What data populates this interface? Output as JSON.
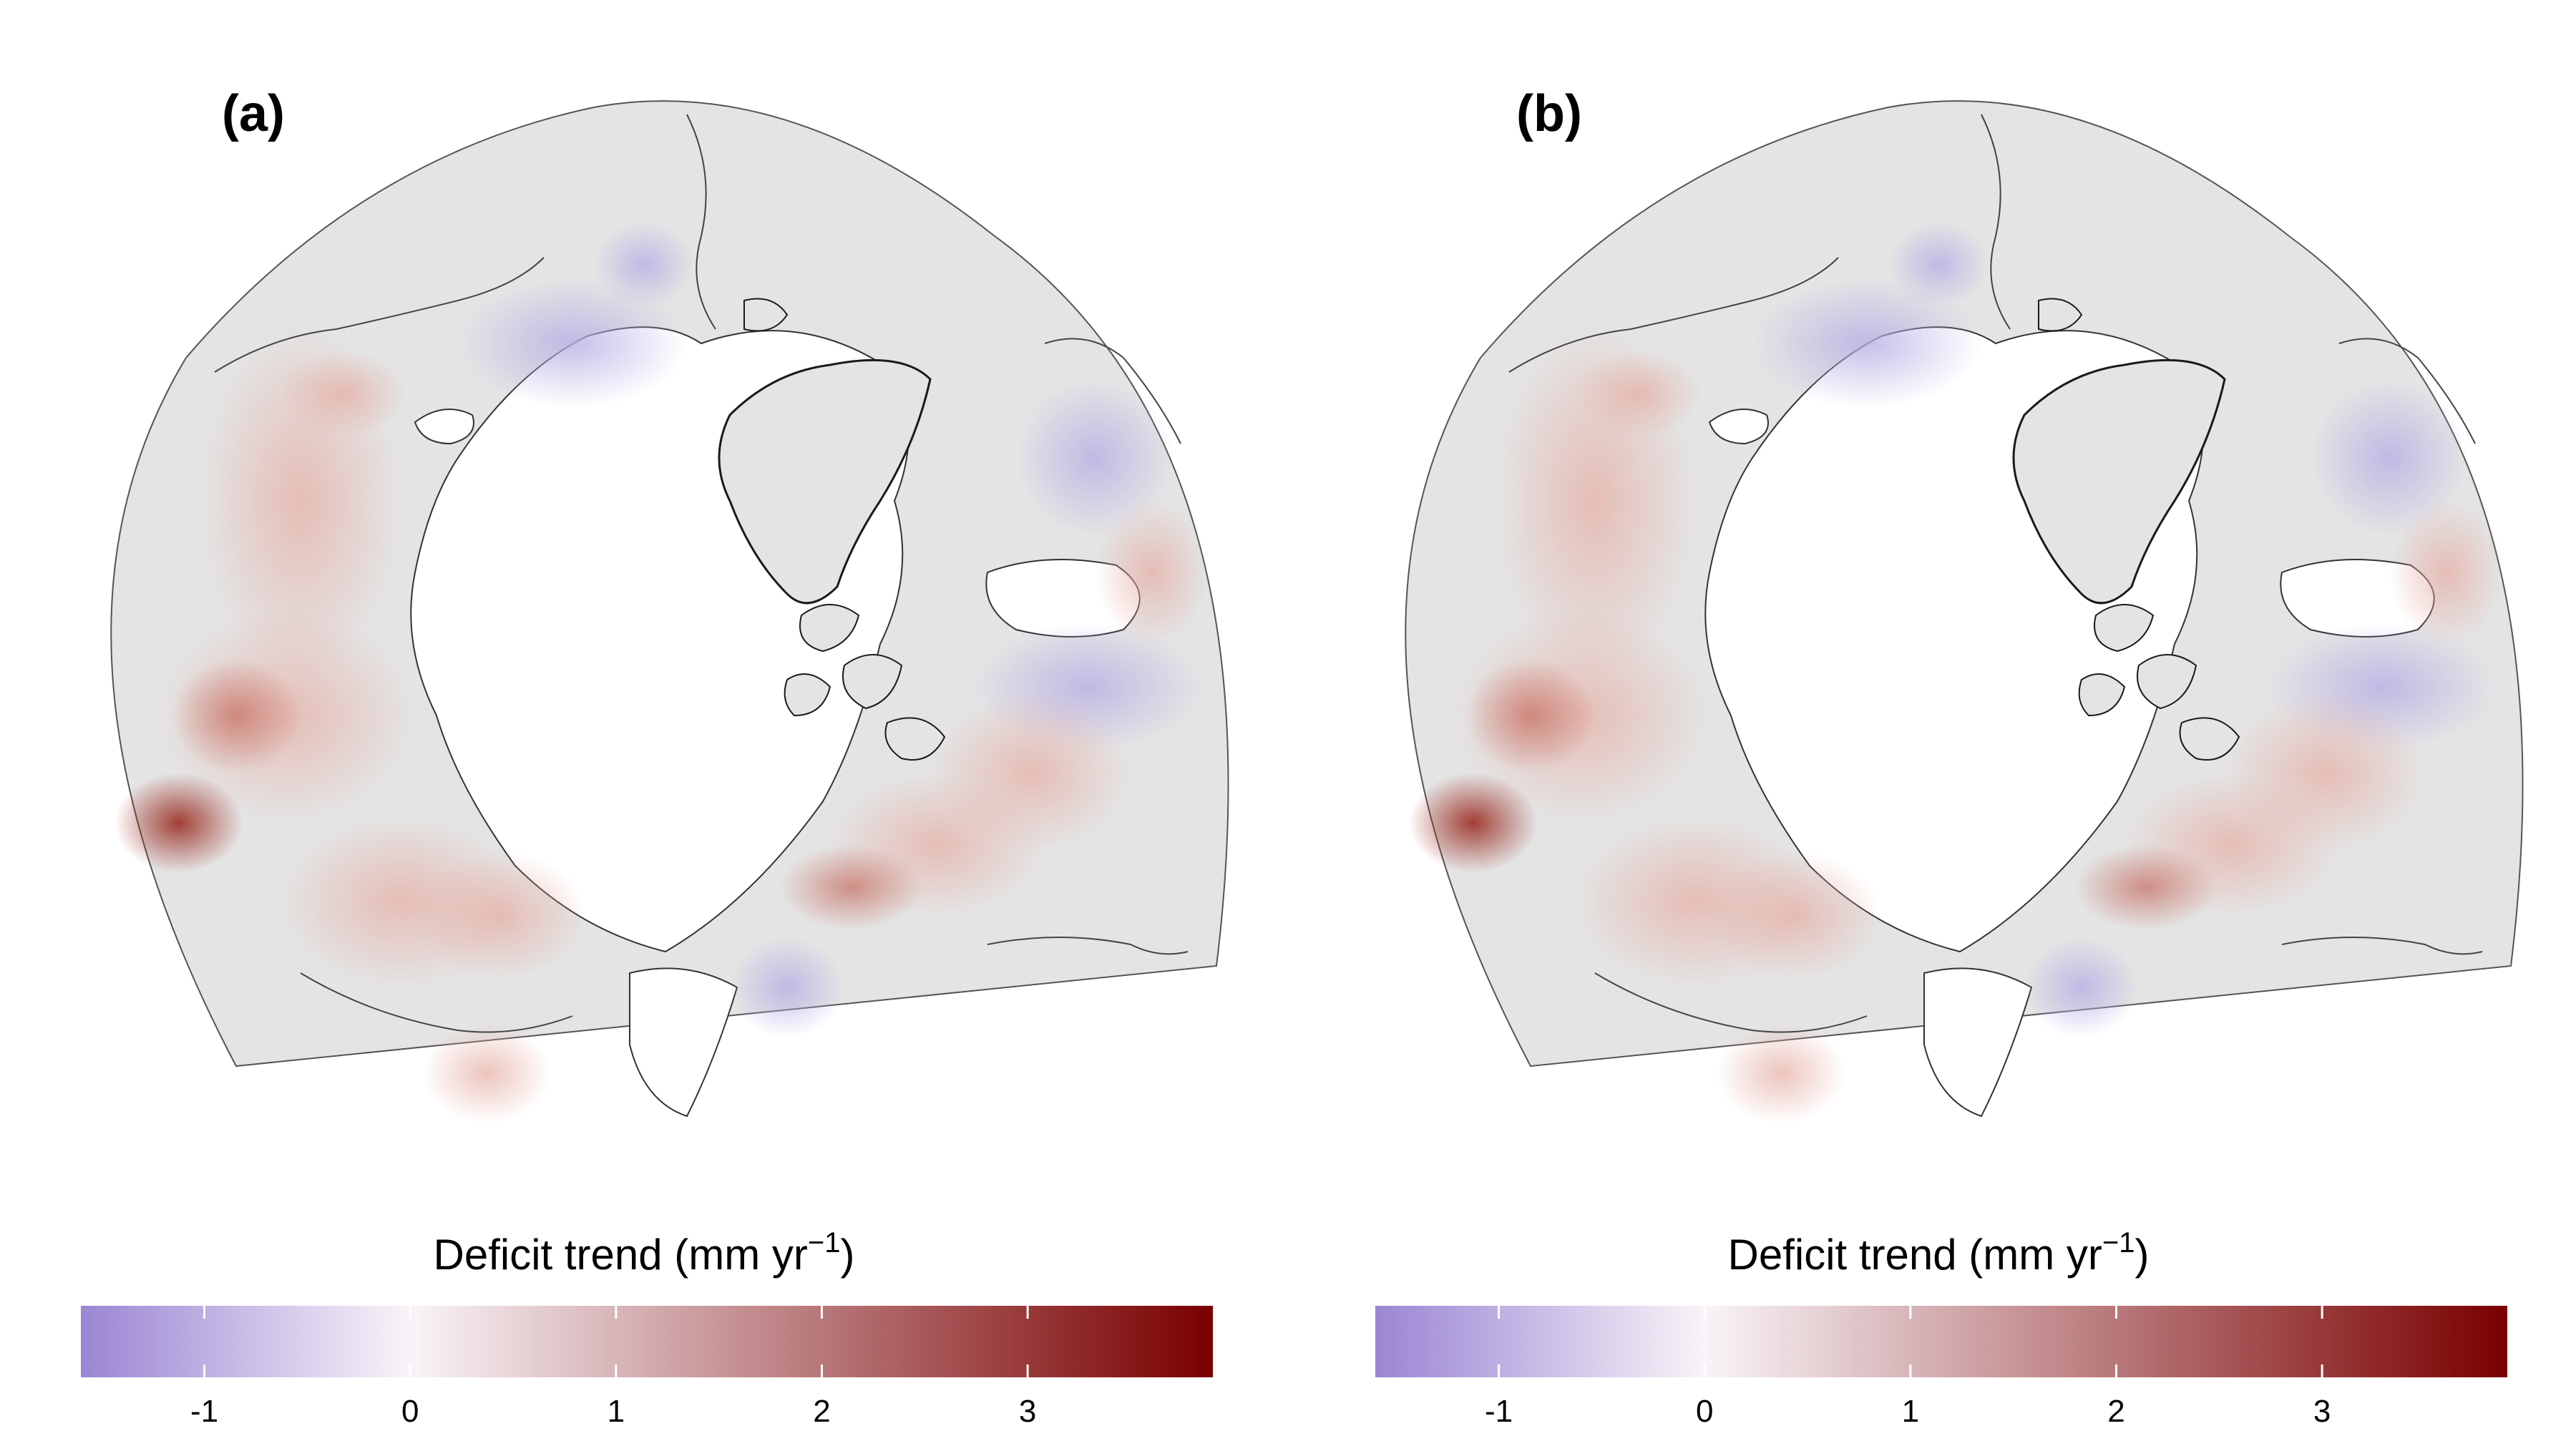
{
  "panels": [
    {
      "id": "a",
      "label": "(a)"
    },
    {
      "id": "b",
      "label": "(b)"
    }
  ],
  "colorbar": {
    "title_prefix": "Deficit trend (mm yr",
    "title_exponent": "−1",
    "title_suffix": ")",
    "ticks": [
      {
        "value": -1,
        "label": "-1"
      },
      {
        "value": 0,
        "label": "0"
      },
      {
        "value": 1,
        "label": "1"
      },
      {
        "value": 2,
        "label": "2"
      },
      {
        "value": 3,
        "label": "3"
      }
    ],
    "range": [
      -1.6,
      3.9
    ],
    "colors": {
      "low": "#9b86d4",
      "mid": "#f8f4f8",
      "high": "#7a0000"
    }
  },
  "map_colors": {
    "land": "#e4e4e4",
    "ocean": "#ffffff",
    "coast": "#303030"
  }
}
